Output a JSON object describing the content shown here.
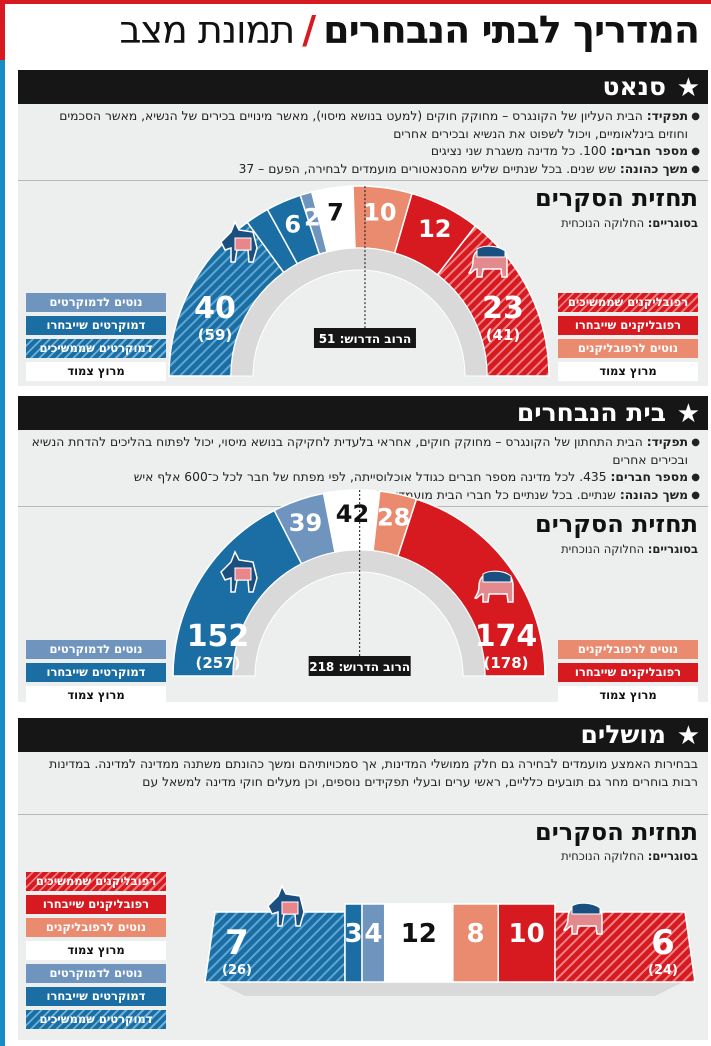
{
  "title": {
    "main": "המדריך לבתי הנבחרים",
    "separator": "/",
    "sub": "תמונת מצב"
  },
  "colors": {
    "dem_base": "#1a6ea3",
    "dem_lean": "#6f95bf",
    "dem_safe_hatch": "#1a6ea3",
    "rep_base": "#d71920",
    "rep_lean": "#ea8a6f",
    "tossup": "#ffffff",
    "header_bg": "#161616",
    "panel_bg": "#edeeee"
  },
  "icons": {
    "democrat": "donkey-icon",
    "republican": "elephant-icon",
    "star": "star-icon"
  },
  "senate": {
    "name": "סנאט",
    "bullets": [
      {
        "label": "תפקיד:",
        "text": " הבית העליון של הקונגרס – מחוקק חוקים (למעט בנושא מיסוי), מאשר מינויים בכירים של הנשיא, מאשר הסכמים וחוזים בינלאומיים, ויכול לשפוט את הנשיא ובכירים אחרים"
      },
      {
        "label": "מספר חברים:",
        "text": " 100. כל מדינה משגרת שני נציגים"
      },
      {
        "label": "משך כהונה:",
        "text": " שש שנים. בכל שנתיים שליש מהסנאטורים מועמדים לבחירה, הפעם – 37"
      }
    ],
    "poll_title": "תחזית הסקרים",
    "poll_note_label": "בסוגריים:",
    "poll_note_text": " החלוקה הנוכחית",
    "majority": "הרוב הדרוש: 51"
  },
  "house": {
    "name": "בית הנבחרים",
    "bullets": [
      {
        "label": "תפקיד:",
        "text": " הבית התחתון של הקונגרס – מחוקק חוקים, אחראי בלעדית לחקיקה בנושא מיסוי, יכול לפתוח בהליכים להדחת הנשיא ובכירים אחרים"
      },
      {
        "label": "מספר חברים:",
        "text": " 435. לכל מדינה מספר חברים כגודל אוכלוסייתה, לפי מפתח של חבר לכל כ־600 אלף איש"
      },
      {
        "label": "משך כהונה:",
        "text": " שנתיים. בכל שנתיים כל חברי הבית מועמדים לבחירה"
      }
    ],
    "poll_title": "תחזית הסקרים",
    "poll_note_label": "בסוגריים:",
    "poll_note_text": " החלוקה הנוכחית",
    "majority": "הרוב הדרוש: 218"
  },
  "governors": {
    "name": "מושלים",
    "text": "בבחירות האמצע מועמדים לבחירה גם חלק ממושלי המדינות, אך סמכויותיהם ומשך כהונתם משתנה ממדינה למדינה. במדינות רבות בוחרים מחר גם תובעים כלליים, ראשי ערים ובעלי תפקידים נוספים, וכן מעלים חוקי מדינה למשאל עם",
    "poll_title": "תחזית הסקרים",
    "poll_note_label": "בסוגריים:",
    "poll_note_text": " החלוקה הנוכחית"
  },
  "legend": {
    "rep_continuing": "רפובליקנים שממשיכים",
    "rep_win": "רפובליקנים שייבחרו",
    "rep_lean": "נוטים לרפובליקנים",
    "tossup": "מרוץ צמוד",
    "dem_lean": "נוטים לדמוקרטים",
    "dem_win": "דמוקרטים שייבחרו",
    "dem_continuing": "דמוקרטים שממשיכים"
  },
  "chart_data": [
    {
      "type": "bar",
      "title": "תחזית הסקרים",
      "subtitle": "בסוגריים: החלוקה הנוכחית",
      "chamber": "סנאט",
      "segments": [
        {
          "name": "דמוקרטים שממשיכים",
          "value": 30,
          "label": "",
          "color": "hatch-blue"
        },
        {
          "name": "דמוקרטים שייבחרו",
          "value": 4,
          "label": "",
          "color": "#1a6ea3"
        },
        {
          "name": "",
          "value": 6,
          "label": "6",
          "color": "#1a6ea3"
        },
        {
          "name": "נוטים לדמוקרטים",
          "value": 2,
          "label": "2",
          "color": "#6f95bf"
        },
        {
          "name": "מרוץ צמוד",
          "value": 7,
          "label": "7",
          "color": "#ffffff"
        },
        {
          "name": "נוטים לרפובליקנים",
          "value": 10,
          "label": "10",
          "color": "#ea8a6f"
        },
        {
          "name": "רפובליקנים שייבחרו",
          "value": 12,
          "label": "12",
          "color": "#d71920"
        },
        {
          "name": "רפובליקנים שממשיכים",
          "value": 29,
          "label": "",
          "color": "hatch-red"
        }
      ],
      "dem_total": "40",
      "dem_current": "(59)",
      "rep_total": "23",
      "rep_current": "(41)",
      "majority": 51
    },
    {
      "type": "bar",
      "title": "תחזית הסקרים",
      "subtitle": "בסוגריים: החלוקה הנוכחית",
      "chamber": "בית הנבחרים",
      "segments": [
        {
          "name": "דמוקרטים שייבחרו",
          "value": 152,
          "label": "",
          "color": "#1a6ea3"
        },
        {
          "name": "נוטים לדמוקרטים",
          "value": 39,
          "label": "39",
          "color": "#6f95bf"
        },
        {
          "name": "מרוץ צמוד",
          "value": 42,
          "label": "42",
          "color": "#ffffff"
        },
        {
          "name": "נוטים לרפובליקנים",
          "value": 28,
          "label": "28",
          "color": "#ea8a6f"
        },
        {
          "name": "רפובליקנים שייבחרו",
          "value": 174,
          "label": "",
          "color": "#d71920"
        }
      ],
      "dem_total": "152",
      "dem_current": "(257)",
      "rep_total": "174",
      "rep_current": "(178)",
      "majority": 218
    },
    {
      "type": "bar",
      "title": "תחזית הסקרים",
      "subtitle": "בסוגריים: החלוקה הנוכחית",
      "chamber": "מושלים",
      "segments": [
        {
          "name": "דמוקרטים שממשיכים",
          "value": 7,
          "label": "7",
          "color": "hatch-blue"
        },
        {
          "name": "דמוקרטים שייבחרו",
          "value": 3,
          "label": "3",
          "color": "#1a6ea3"
        },
        {
          "name": "נוטים לדמוקרטים",
          "value": 4,
          "label": "4",
          "color": "#6f95bf"
        },
        {
          "name": "מרוץ צמוד",
          "value": 12,
          "label": "12",
          "color": "#ffffff"
        },
        {
          "name": "נוטים לרפובליקנים",
          "value": 8,
          "label": "8",
          "color": "#ea8a6f"
        },
        {
          "name": "רפובליקנים שייבחרו",
          "value": 10,
          "label": "10",
          "color": "#d71920"
        },
        {
          "name": "רפובליקנים שממשיכים",
          "value": 6,
          "label": "6",
          "color": "hatch-red"
        }
      ],
      "dem_total": "7",
      "dem_current": "(26)",
      "rep_total": "6",
      "rep_current": "(24)"
    }
  ]
}
